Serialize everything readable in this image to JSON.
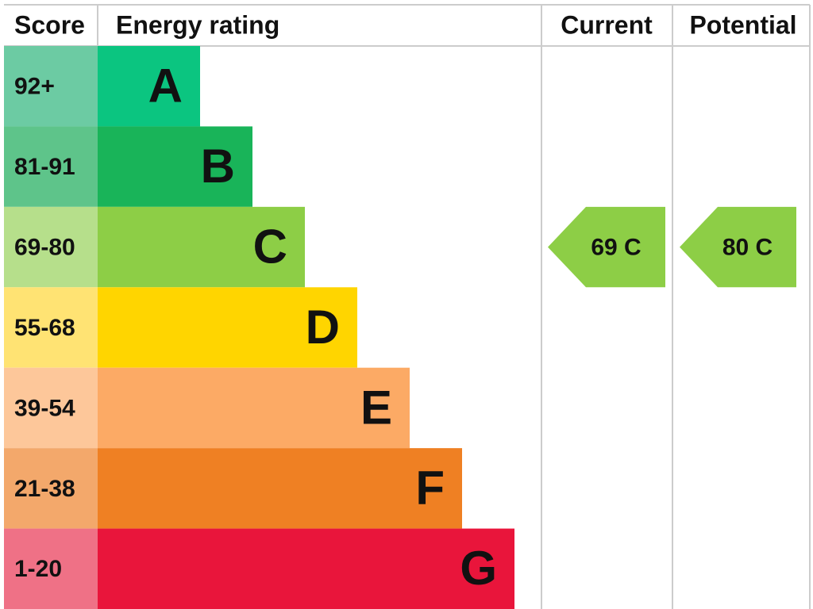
{
  "header": {
    "score": "Score",
    "rating": "Energy rating",
    "current": "Current",
    "potential": "Potential"
  },
  "bands": [
    {
      "score": "92+",
      "letter": "A",
      "color": "#0bc580",
      "score_color": "#6ccba3"
    },
    {
      "score": "81-91",
      "letter": "B",
      "color": "#19b459",
      "score_color": "#5ec48a"
    },
    {
      "score": "69-80",
      "letter": "C",
      "color": "#8dce46",
      "score_color": "#b6df8b"
    },
    {
      "score": "55-68",
      "letter": "D",
      "color": "#ffd500",
      "score_color": "#ffe373"
    },
    {
      "score": "39-54",
      "letter": "E",
      "color": "#fcaa65",
      "score_color": "#fdc79a"
    },
    {
      "score": "21-38",
      "letter": "F",
      "color": "#ef8023",
      "score_color": "#f3a86b"
    },
    {
      "score": "1-20",
      "letter": "G",
      "color": "#e9153b",
      "score_color": "#ef7186"
    }
  ],
  "current": {
    "label": "69 C",
    "color": "#8dce46"
  },
  "potential": {
    "label": "80 C",
    "color": "#8dce46"
  }
}
